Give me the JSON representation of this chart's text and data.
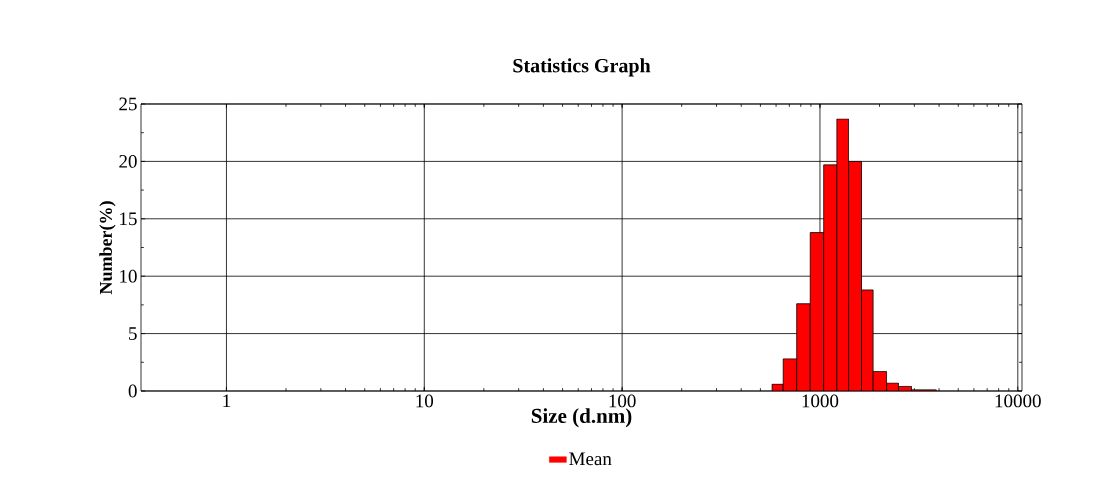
{
  "chart_data": {
    "type": "histogram",
    "title": "Statistics  Graph",
    "xlabel": "Size (d.nm)",
    "ylabel": "Number(%)",
    "bins": [
      573,
      652,
      763,
      893,
      1044,
      1217,
      1396,
      1622,
      1857,
      2173,
      2493,
      2904,
      3872
    ],
    "series": [
      {
        "name": "Mean",
        "color": "#ff0000",
        "values": [
          0.6,
          2.8,
          7.6,
          13.8,
          19.7,
          23.7,
          20.0,
          8.8,
          1.7,
          0.7,
          0.4,
          0.1
        ]
      }
    ],
    "log": "x",
    "xlim": [
      0.37,
      10500
    ],
    "xticks": [
      1,
      10,
      100,
      1000,
      10000
    ],
    "ylim": [
      0,
      25
    ],
    "yticks": [
      0,
      5,
      10,
      15,
      20,
      25
    ],
    "grid": true,
    "legend": "bottom"
  }
}
